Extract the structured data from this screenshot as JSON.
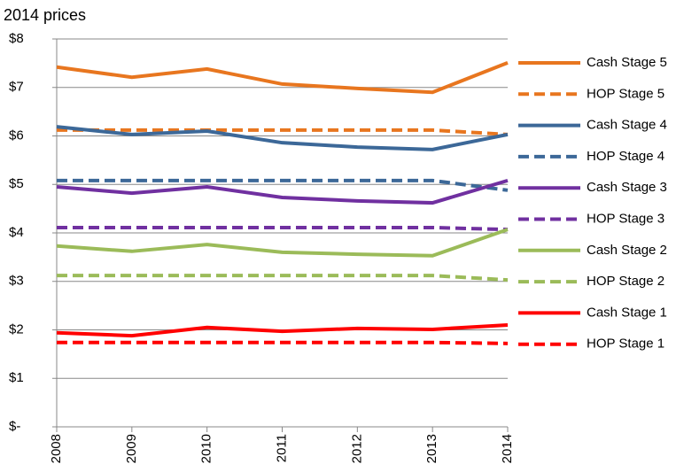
{
  "chart_data": {
    "type": "line",
    "title": "2014 prices",
    "categories": [
      "2008",
      "2009",
      "2010",
      "2011",
      "2012",
      "2013",
      "2014"
    ],
    "ylim": [
      0,
      8
    ],
    "yticks": [
      {
        "value": 0,
        "label": "$-"
      },
      {
        "value": 1,
        "label": "$1"
      },
      {
        "value": 2,
        "label": "$2"
      },
      {
        "value": 3,
        "label": "$3"
      },
      {
        "value": 4,
        "label": "$4"
      },
      {
        "value": 5,
        "label": "$5"
      },
      {
        "value": 6,
        "label": "$6"
      },
      {
        "value": 7,
        "label": "$7"
      },
      {
        "value": 8,
        "label": "$8"
      }
    ],
    "grid": true,
    "legend": "right",
    "series": [
      {
        "name": "Cash Stage 5",
        "color": "#e8761f",
        "dashed": false,
        "values": [
          7.42,
          7.21,
          7.38,
          7.07,
          6.98,
          6.9,
          7.51
        ]
      },
      {
        "name": "HOP Stage 5",
        "color": "#e8761f",
        "dashed": true,
        "values": [
          6.12,
          6.12,
          6.12,
          6.12,
          6.12,
          6.12,
          6.03
        ]
      },
      {
        "name": "Cash Stage 4",
        "color": "#3c6898",
        "dashed": false,
        "values": [
          6.19,
          6.03,
          6.1,
          5.86,
          5.77,
          5.72,
          6.03
        ]
      },
      {
        "name": "HOP Stage 4",
        "color": "#3c6898",
        "dashed": true,
        "values": [
          5.08,
          5.08,
          5.08,
          5.08,
          5.08,
          5.08,
          4.88
        ]
      },
      {
        "name": "Cash Stage 3",
        "color": "#7030a0",
        "dashed": false,
        "values": [
          4.95,
          4.82,
          4.95,
          4.73,
          4.66,
          4.62,
          5.08
        ]
      },
      {
        "name": "HOP Stage 3",
        "color": "#7030a0",
        "dashed": true,
        "values": [
          4.11,
          4.11,
          4.11,
          4.11,
          4.11,
          4.11,
          4.07
        ]
      },
      {
        "name": "Cash Stage 2",
        "color": "#9bbb59",
        "dashed": false,
        "values": [
          3.73,
          3.62,
          3.76,
          3.6,
          3.56,
          3.53,
          4.07
        ]
      },
      {
        "name": "HOP Stage 2",
        "color": "#9bbb59",
        "dashed": true,
        "values": [
          3.12,
          3.12,
          3.12,
          3.12,
          3.12,
          3.12,
          3.03
        ]
      },
      {
        "name": "Cash Stage 1",
        "color": "#ff0000",
        "dashed": false,
        "values": [
          1.94,
          1.88,
          2.05,
          1.97,
          2.03,
          2.01,
          2.1
        ]
      },
      {
        "name": "HOP Stage 1",
        "color": "#ff0000",
        "dashed": true,
        "values": [
          1.74,
          1.74,
          1.74,
          1.74,
          1.74,
          1.74,
          1.72
        ]
      }
    ]
  }
}
